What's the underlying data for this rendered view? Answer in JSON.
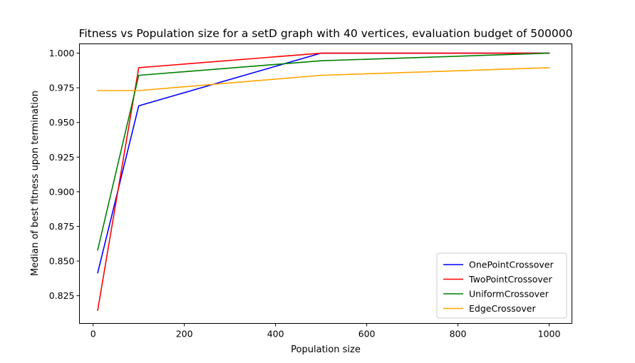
{
  "chart_data": {
    "type": "line",
    "title": "Fitness vs Population size for a setD graph with 40 vertices, evaluation budget of 500000",
    "xlabel": "Population size",
    "ylabel": "Median of best fitness upon termination",
    "xlim": [
      -30,
      1050
    ],
    "ylim": [
      0.805,
      1.0067
    ],
    "x_ticks": [
      0,
      200,
      400,
      600,
      800,
      1000
    ],
    "x_tick_labels": [
      "0",
      "200",
      "400",
      "600",
      "800",
      "1000"
    ],
    "y_ticks": [
      0.825,
      0.85,
      0.875,
      0.9,
      0.925,
      0.95,
      0.975,
      1.0
    ],
    "y_tick_labels": [
      "0.825",
      "0.850",
      "0.875",
      "0.900",
      "0.925",
      "0.950",
      "0.975",
      "1.000"
    ],
    "grid": false,
    "legend_position": "lower-right",
    "x": [
      10,
      100,
      500,
      1000
    ],
    "series": [
      {
        "name": "OnePointCrossover",
        "color": "#0000ff",
        "values": [
          0.8415,
          0.962,
          1.0,
          1.0
        ]
      },
      {
        "name": "TwoPointCrossover",
        "color": "#ff0000",
        "values": [
          0.8145,
          0.9895,
          1.0,
          1.0
        ]
      },
      {
        "name": "UniformCrossover",
        "color": "#008000",
        "values": [
          0.858,
          0.984,
          0.9945,
          1.0
        ]
      },
      {
        "name": "EdgeCrossover",
        "color": "#ffa500",
        "values": [
          0.973,
          0.973,
          0.984,
          0.9895
        ]
      }
    ]
  }
}
